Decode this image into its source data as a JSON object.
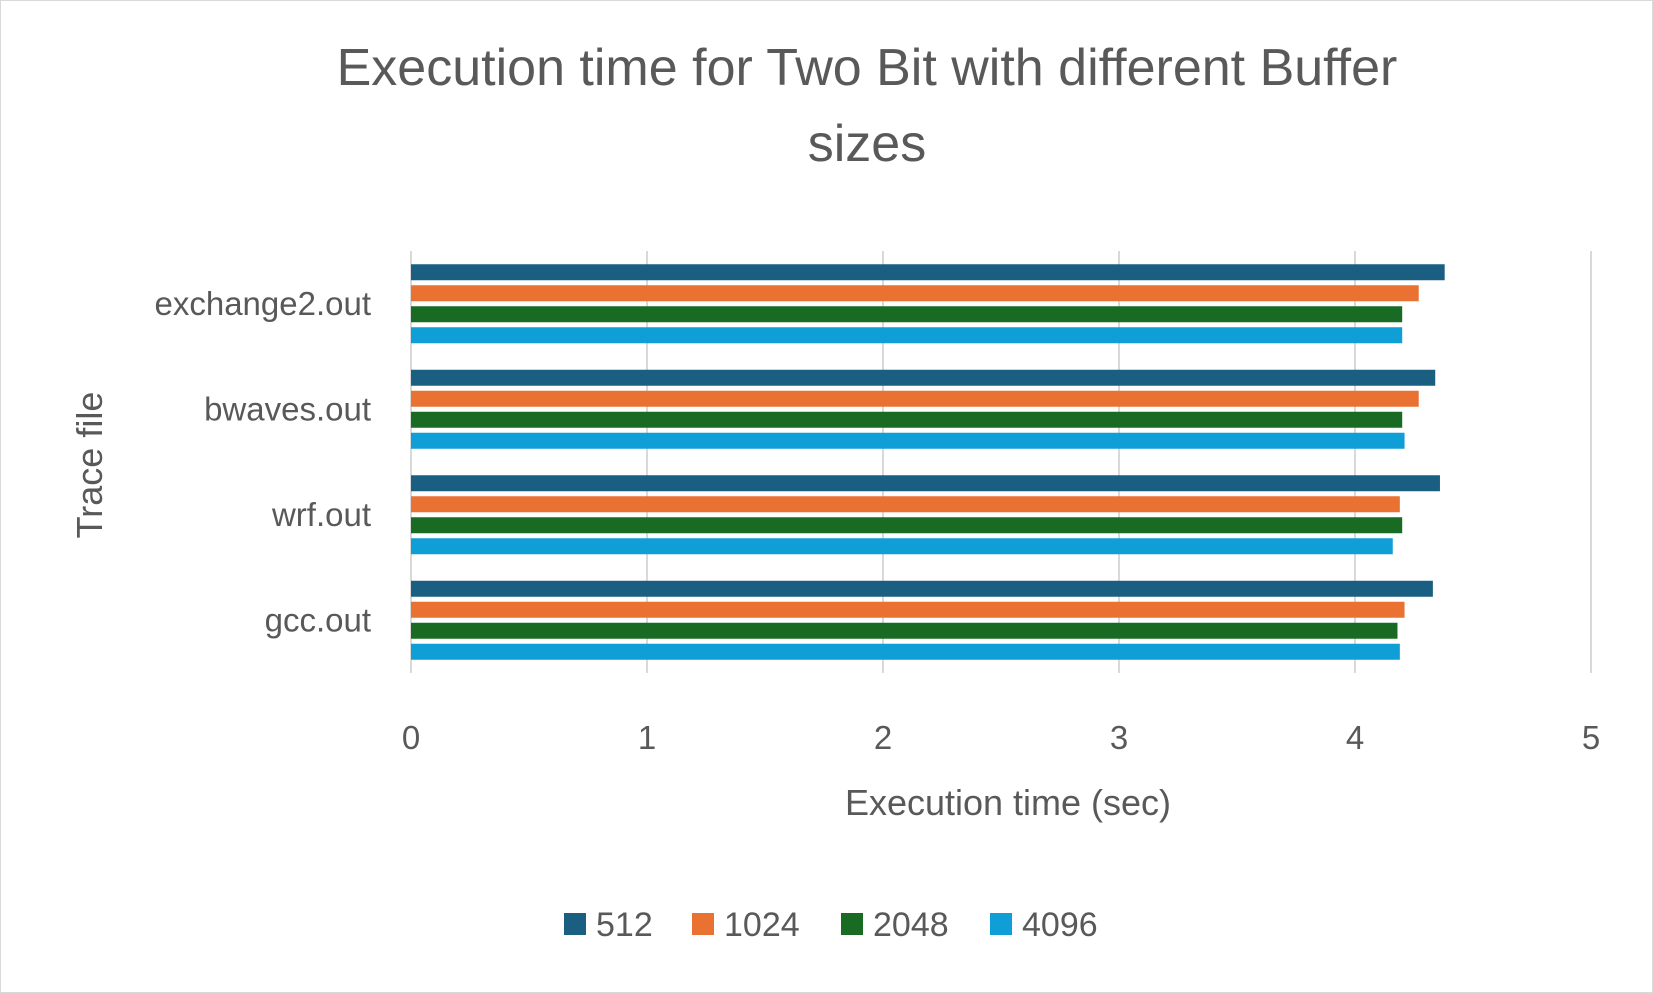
{
  "chart_data": {
    "type": "bar",
    "orientation": "horizontal",
    "title_lines": [
      "Execution time for Two Bit with different Buffer",
      "sizes"
    ],
    "xlabel": "Execution time (sec)",
    "ylabel": "Trace file",
    "categories": [
      "exchange2.out",
      "bwaves.out",
      "wrf.out",
      "gcc.out"
    ],
    "xlim": [
      0,
      5
    ],
    "xticks": [
      "0",
      "1",
      "2",
      "3",
      "4",
      "5"
    ],
    "grid": "vertical",
    "legend_position": "bottom",
    "series": [
      {
        "name": "512",
        "color": "#1a5e82",
        "values": [
          4.38,
          4.34,
          4.36,
          4.33
        ]
      },
      {
        "name": "1024",
        "color": "#e97132",
        "values": [
          4.27,
          4.27,
          4.19,
          4.21
        ]
      },
      {
        "name": "2048",
        "color": "#196b24",
        "values": [
          4.2,
          4.2,
          4.2,
          4.18
        ]
      },
      {
        "name": "4096",
        "color": "#0f9ed5",
        "values": [
          4.2,
          4.21,
          4.16,
          4.19
        ]
      }
    ]
  }
}
